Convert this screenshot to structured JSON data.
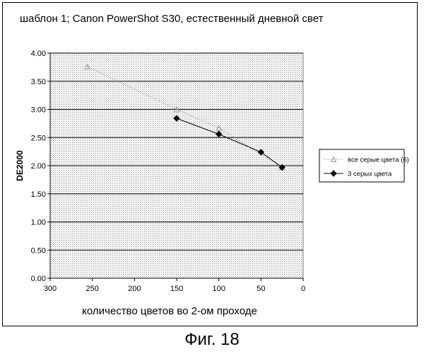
{
  "caption": "Фиг. 18",
  "chart_data": {
    "type": "line",
    "title": "шаблон 1; Canon PowerShot S30, естественный дневной свет",
    "xlabel": "количество цветов во 2-ом проходе",
    "ylabel": "DE2000",
    "xlim": [
      300,
      0
    ],
    "ylim": [
      0,
      4
    ],
    "x_reversed": true,
    "xticks": [
      300,
      250,
      200,
      150,
      100,
      50,
      0
    ],
    "yticks": [
      "0.00",
      "0.50",
      "1.00",
      "1.50",
      "2.00",
      "2.50",
      "3.00",
      "3.50",
      "4.00"
    ],
    "grid": true,
    "legend_position": "right",
    "series": [
      {
        "name": "все серые цвета (6)",
        "color": "#9a9a9a",
        "line": "dotted",
        "marker": "triangle",
        "x": [
          256,
          150,
          100,
          25
        ],
        "y": [
          3.76,
          3.0,
          2.67,
          1.97
        ]
      },
      {
        "name": "3 серых цвета",
        "color": "#000000",
        "line": "solid",
        "marker": "diamond",
        "x": [
          150,
          100,
          50,
          25
        ],
        "y": [
          2.84,
          2.56,
          2.24,
          1.97
        ]
      }
    ]
  }
}
